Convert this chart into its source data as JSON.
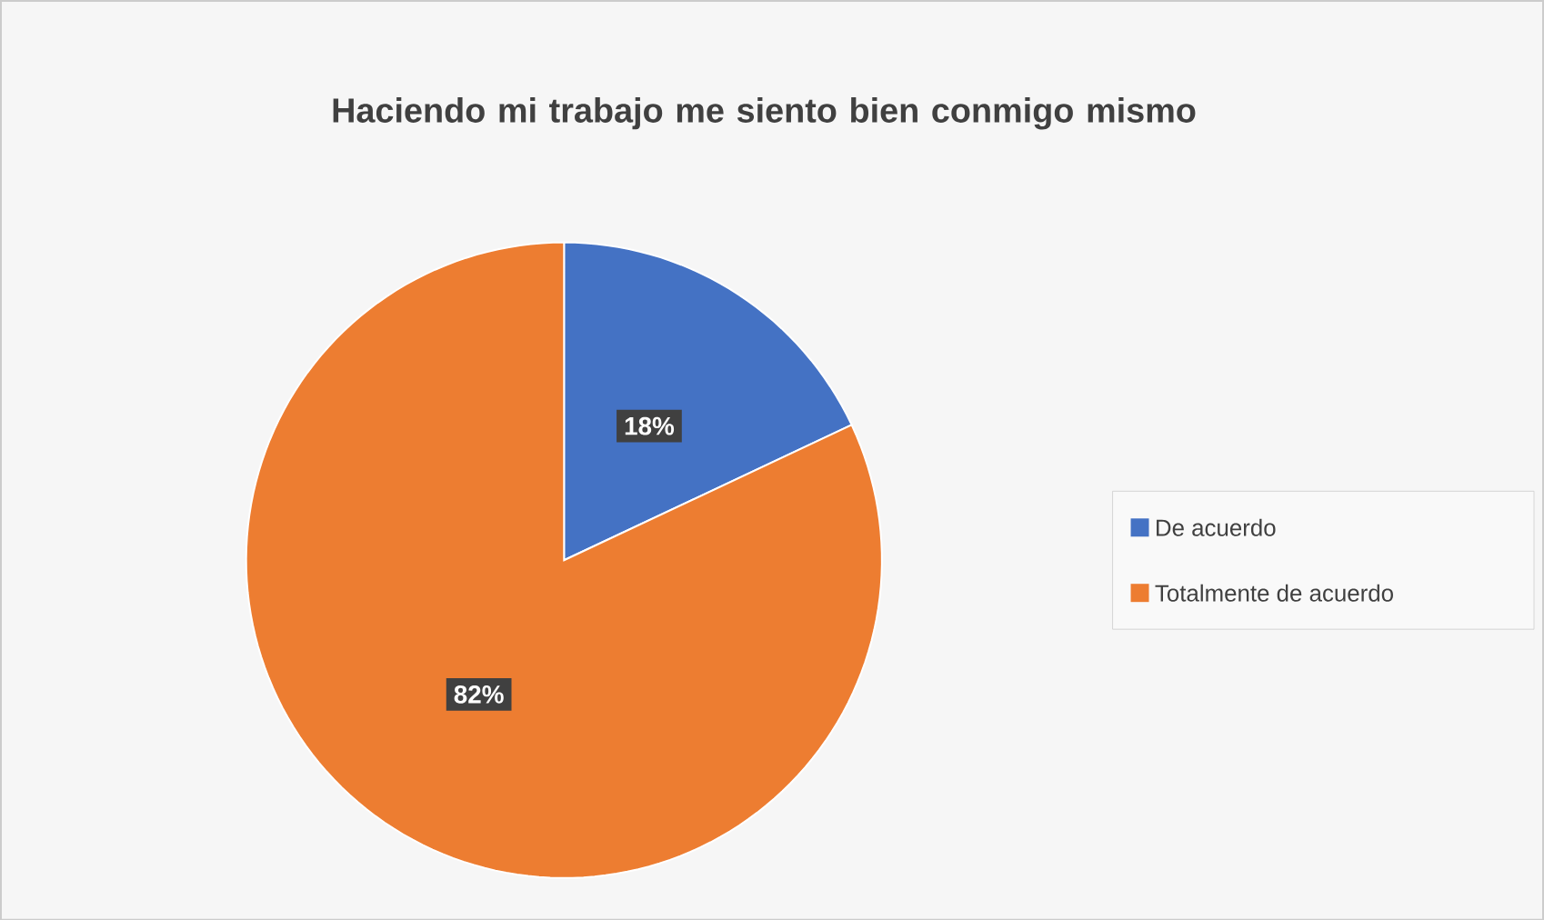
{
  "chart_data": {
    "type": "pie",
    "title": "Haciendo mi trabajo me siento bien conmigo mismo",
    "categories": [
      "De acuerdo",
      "Totalmente de acuerdo"
    ],
    "values": [
      18,
      82
    ],
    "colors": [
      "#4472c4",
      "#ed7d31"
    ],
    "value_labels": [
      "18%",
      "82%"
    ],
    "legend": "right"
  }
}
